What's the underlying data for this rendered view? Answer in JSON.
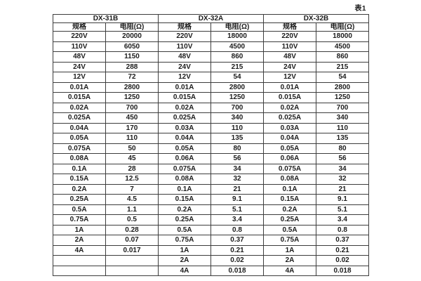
{
  "caption": "表1",
  "table": {
    "groups": [
      {
        "name": "DX-31B",
        "spec_header": "规格",
        "resistance_header": "电阻(Ω)"
      },
      {
        "name": "DX-32A",
        "spec_header": "规格",
        "resistance_header": "电阻(Ω)"
      },
      {
        "name": "DX-32B",
        "spec_header": "规格",
        "resistance_header": "电阻(Ω)"
      }
    ],
    "rows": [
      [
        "220V",
        "20000",
        "220V",
        "18000",
        "220V",
        "18000"
      ],
      [
        "110V",
        "6050",
        "110V",
        "4500",
        "110V",
        "4500"
      ],
      [
        "48V",
        "1150",
        "48V",
        "860",
        "48V",
        "860"
      ],
      [
        "24V",
        "288",
        "24V",
        "215",
        "24V",
        "215"
      ],
      [
        "12V",
        "72",
        "12V",
        "54",
        "12V",
        "54"
      ],
      [
        "0.01A",
        "2800",
        "0.01A",
        "2800",
        "0.01A",
        "2800"
      ],
      [
        "0.015A",
        "1250",
        "0.015A",
        "1250",
        "0.015A",
        "1250"
      ],
      [
        "0.02A",
        "700",
        "0.02A",
        "700",
        "0.02A",
        "700"
      ],
      [
        "0.025A",
        "450",
        "0.025A",
        "340",
        "0.025A",
        "340"
      ],
      [
        "0.04A",
        "170",
        "0.03A",
        "110",
        "0.03A",
        "110"
      ],
      [
        "0.05A",
        "110",
        "0.04A",
        "135",
        "0.04A",
        "135"
      ],
      [
        "0.075A",
        "50",
        "0.05A",
        "80",
        "0.05A",
        "80"
      ],
      [
        "0.08A",
        "45",
        "0.06A",
        "56",
        "0.06A",
        "56"
      ],
      [
        "0.1A",
        "28",
        "0.075A",
        "34",
        "0.075A",
        "34"
      ],
      [
        "0.15A",
        "12.5",
        "0.08A",
        "32",
        "0.08A",
        "32"
      ],
      [
        "0.2A",
        "7",
        "0.1A",
        "21",
        "0.1A",
        "21"
      ],
      [
        "0.25A",
        "4.5",
        "0.15A",
        "9.1",
        "0.15A",
        "9.1"
      ],
      [
        "0.5A",
        "1.1",
        "0.2A",
        "5.1",
        "0.2A",
        "5.1"
      ],
      [
        "0.75A",
        "0.5",
        "0.25A",
        "3.4",
        "0.25A",
        "3.4"
      ],
      [
        "1A",
        "0.28",
        "0.5A",
        "0.8",
        "0.5A",
        "0.8"
      ],
      [
        "2A",
        "0.07",
        "0.75A",
        "0.37",
        "0.75A",
        "0.37"
      ],
      [
        "4A",
        "0.017",
        "1A",
        "0.21",
        "1A",
        "0.21"
      ],
      [
        "",
        "",
        "2A",
        "0.02",
        "2A",
        "0.02"
      ],
      [
        "",
        "",
        "4A",
        "0.018",
        "4A",
        "0.018"
      ]
    ],
    "colors": {
      "border": "#3d3d3d",
      "text": "#1c1c1c",
      "background": "#ffffff"
    }
  }
}
